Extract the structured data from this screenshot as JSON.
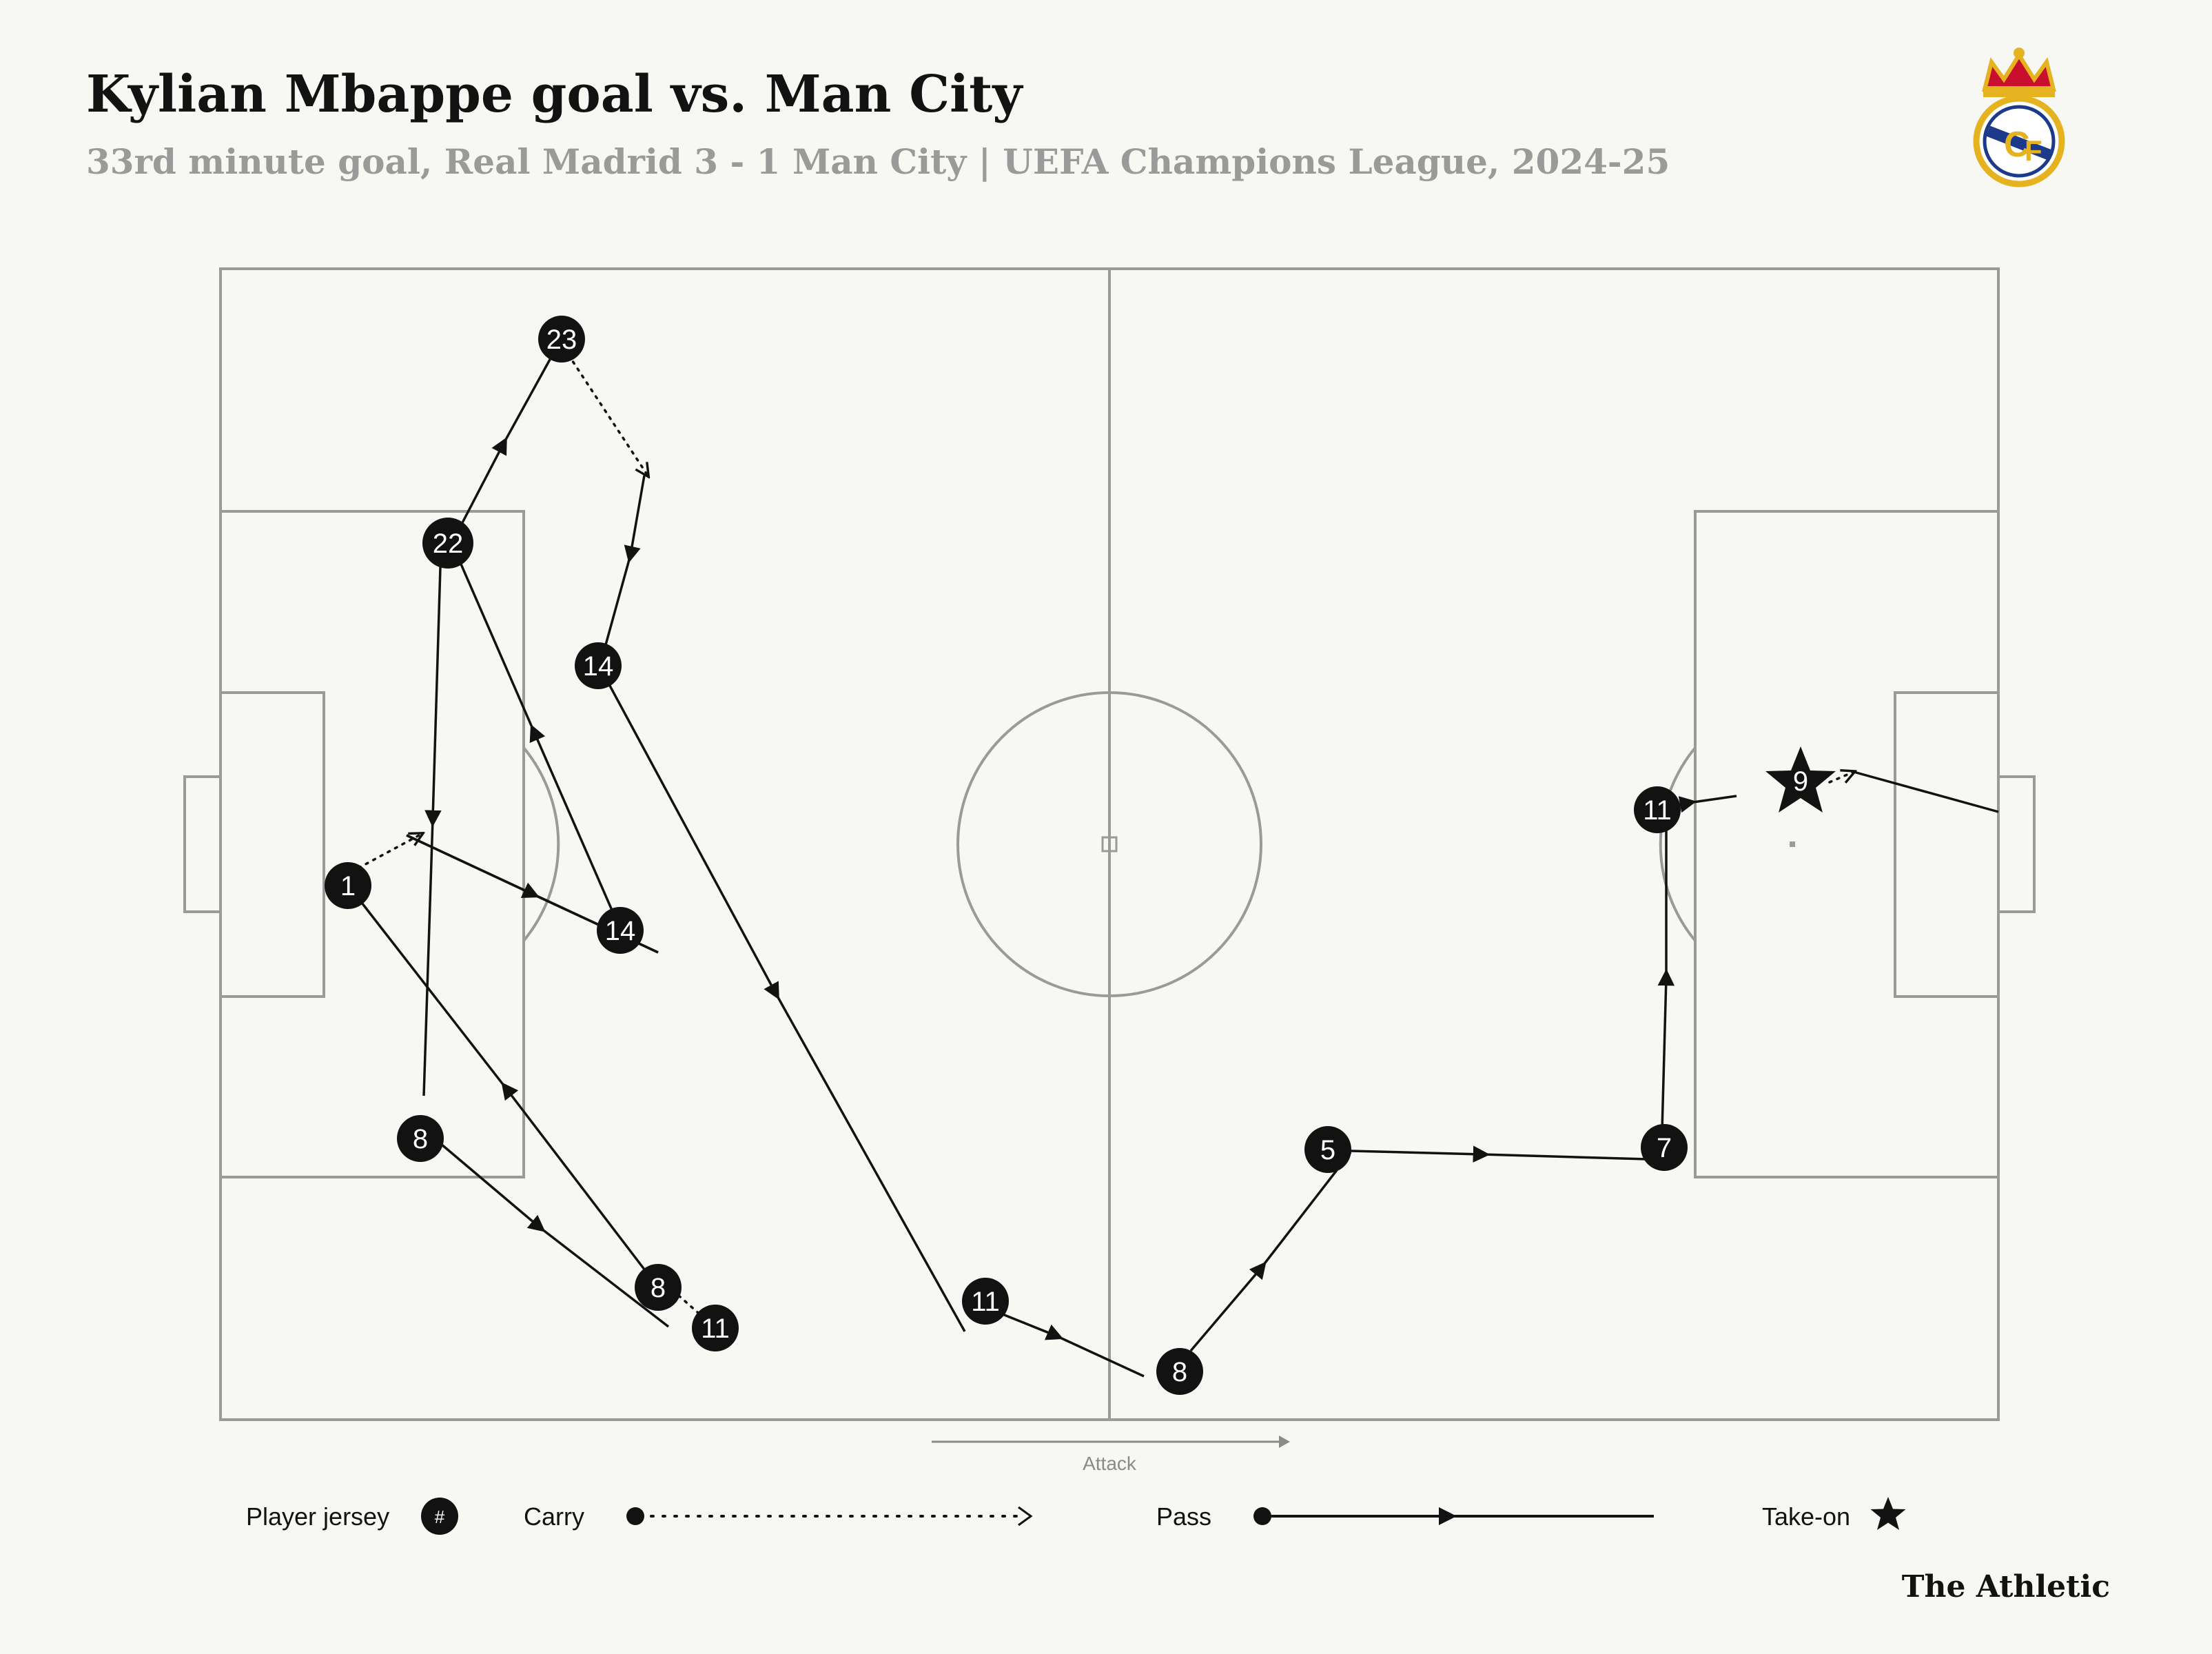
{
  "header": {
    "title": "Kylian Mbappe goal vs. Man City",
    "subtitle": "33rd minute goal, Real Madrid 3 - 1 Man City | UEFA Champions League, 2024-25"
  },
  "club_crest": {
    "icon": "real-madrid-crest-icon"
  },
  "pitch": {
    "attack_label": "Attack"
  },
  "sequence": {
    "players": [
      "1",
      "8",
      "22",
      "23",
      "14",
      "11",
      "5",
      "7",
      "9"
    ],
    "actions": [
      {
        "type": "carry",
        "player": "1"
      },
      {
        "type": "pass",
        "from": "1",
        "to": "14"
      },
      {
        "type": "pass",
        "from": "14",
        "to": "22"
      },
      {
        "type": "pass",
        "from": "22",
        "to": "8"
      },
      {
        "type": "carry",
        "player": "8"
      },
      {
        "type": "pass",
        "from": "8",
        "to": "22"
      },
      {
        "type": "pass",
        "from": "22",
        "to": "23"
      },
      {
        "type": "carry",
        "player": "23"
      },
      {
        "type": "pass",
        "from": "23",
        "to": "14"
      },
      {
        "type": "pass",
        "from": "14",
        "to": "11"
      },
      {
        "type": "pass",
        "from": "11",
        "to": "8"
      },
      {
        "type": "pass",
        "from": "8",
        "to": "5"
      },
      {
        "type": "pass",
        "from": "5",
        "to": "7"
      },
      {
        "type": "pass",
        "from": "7",
        "to": "11"
      },
      {
        "type": "pass",
        "from": "11",
        "to": "9"
      },
      {
        "type": "take-on",
        "player": "9"
      },
      {
        "type": "shot",
        "player": "9"
      }
    ]
  },
  "legend": {
    "player_jersey": "Player jersey",
    "jersey_symbol": "#",
    "carry": "Carry",
    "pass": "Pass",
    "take_on": "Take-on"
  },
  "footer": {
    "brand": "The Athletic"
  },
  "colors": {
    "background": "#f7f7f3",
    "ink": "#121212",
    "pitch_lines": "#9a9a9a",
    "subtitle": "#9a9a9a"
  }
}
